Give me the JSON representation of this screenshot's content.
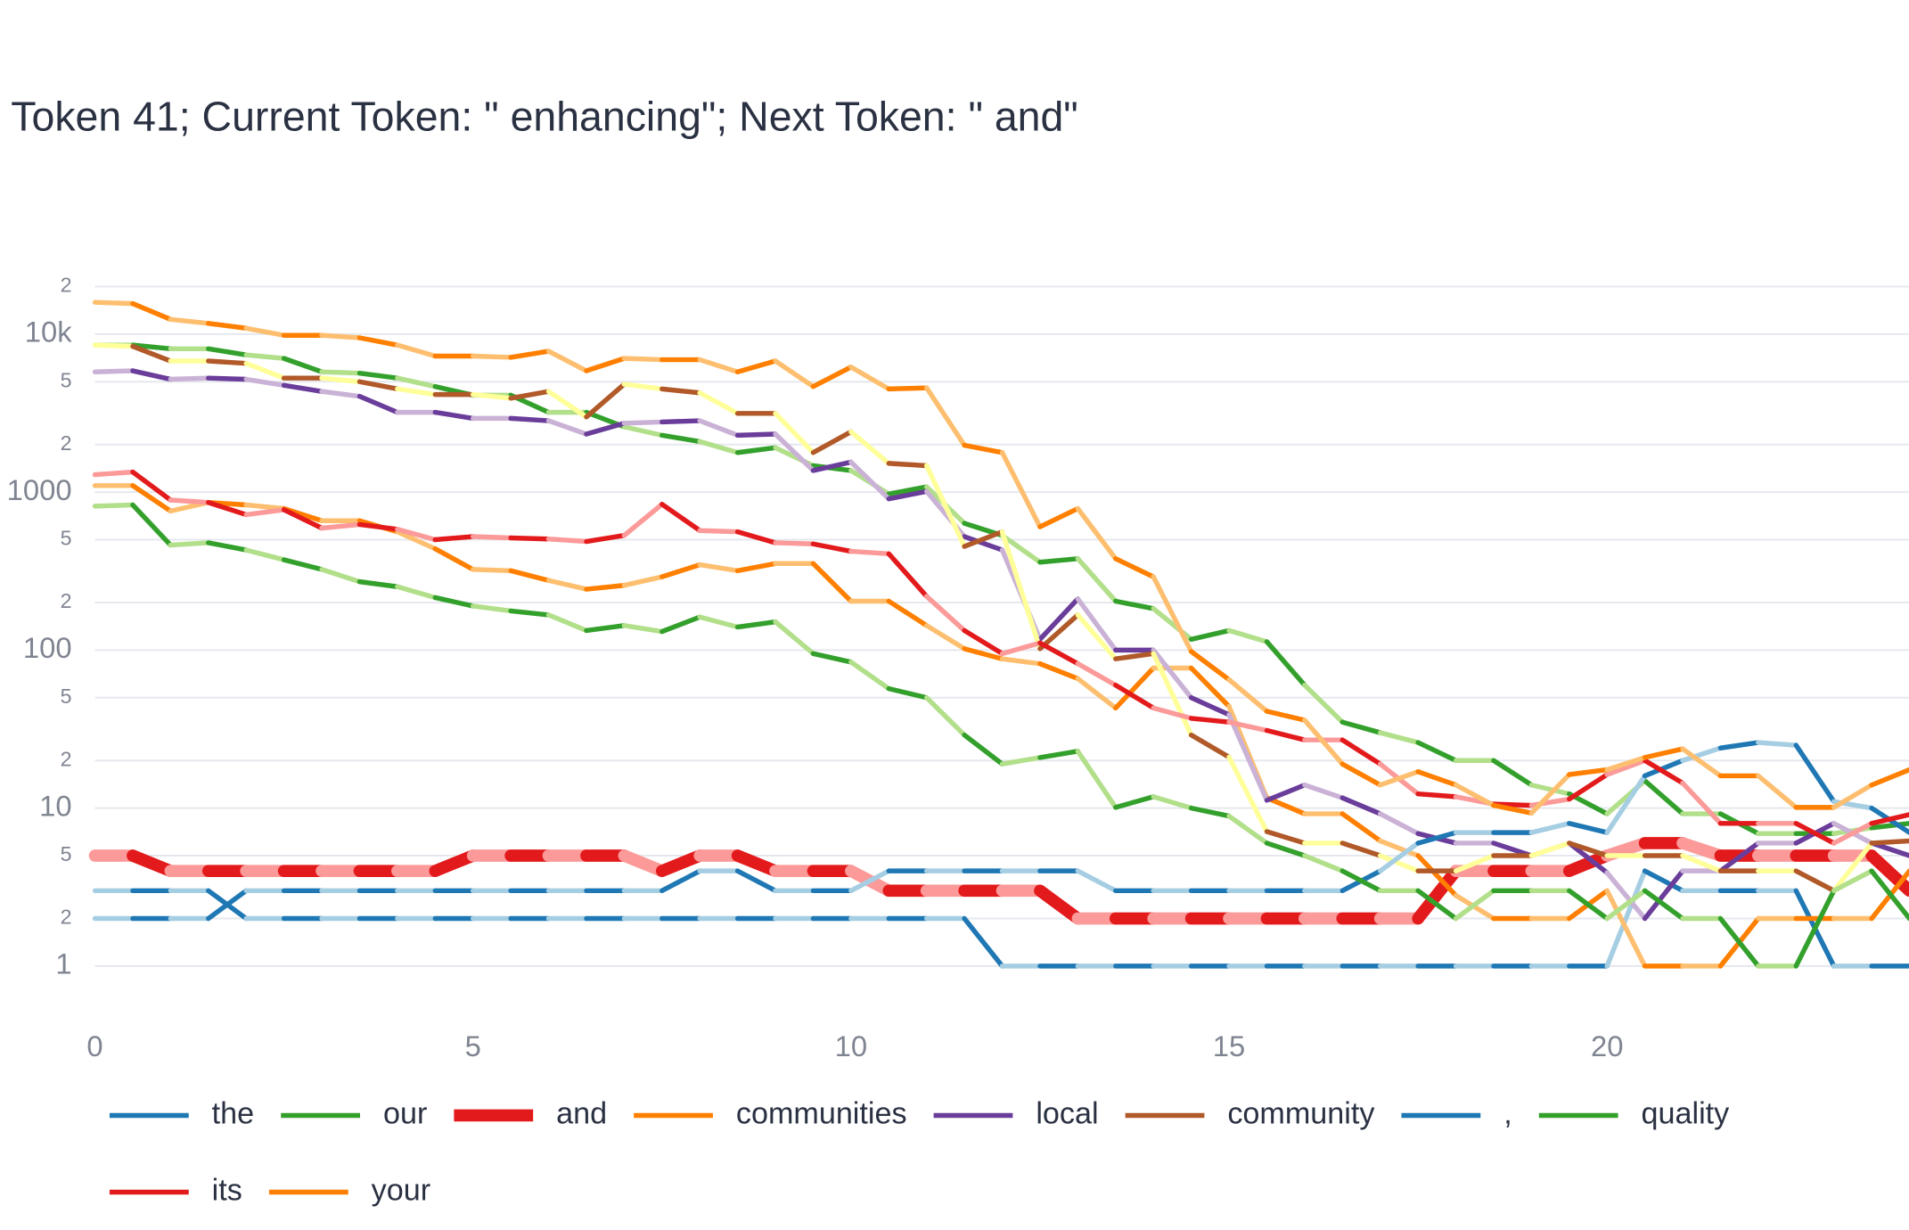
{
  "chart_data": {
    "type": "line",
    "title": "Token 41; Current Token: \" enhancing\"; Next Token: \" and\"",
    "yscale": "log",
    "grid": true,
    "legend": "bottom",
    "xlim": [
      0,
      24.05
    ],
    "xticks": [
      0,
      5,
      10,
      15,
      20
    ],
    "ylim": [
      0.57,
      24000
    ],
    "yticks": [
      1,
      2,
      5,
      10,
      {
        "value": 20,
        "label": "2"
      },
      {
        "value": 50,
        "label": "5"
      },
      100,
      {
        "value": 200,
        "label": "2"
      },
      {
        "value": 500,
        "label": "5"
      },
      1000,
      {
        "value": 2000,
        "label": "2"
      },
      {
        "value": 5000,
        "label": "5"
      },
      {
        "value": 10000,
        "label": "10k"
      },
      {
        "value": 20000,
        "label": "2"
      }
    ],
    "x": [
      0,
      0.5,
      1,
      1.5,
      2,
      2.5,
      3,
      3.5,
      4,
      4.5,
      5,
      5.5,
      6,
      6.5,
      7,
      7.5,
      8,
      8.5,
      9,
      9.5,
      10,
      10.5,
      11,
      11.5,
      12,
      12.5,
      13,
      13.5,
      14,
      14.5,
      15,
      15.5,
      16,
      16.5,
      17,
      17.5,
      18,
      18.5,
      19,
      19.5,
      20,
      20.5,
      21,
      21.5,
      22,
      22.5,
      23,
      23.5,
      24
    ],
    "series": [
      {
        "name": "the",
        "colors": [
          "#1f78b4",
          "#a6cee3"
        ],
        "values": [
          3,
          3,
          3,
          3,
          2,
          2,
          2,
          2,
          2,
          2,
          2,
          2,
          2,
          2,
          2,
          2,
          2,
          2,
          2,
          2,
          2,
          2,
          2,
          2,
          1,
          1,
          1,
          1,
          1,
          1,
          1,
          1,
          1,
          1,
          1,
          1,
          1,
          1,
          1,
          1,
          1,
          4,
          3,
          3,
          3,
          3,
          1,
          1,
          1
        ]
      },
      {
        "name": "our",
        "colors": [
          "#33a02c",
          "#b2df8a"
        ],
        "values": [
          8530,
          8530,
          8080,
          8080,
          7390,
          7020,
          5770,
          5660,
          5270,
          4660,
          4110,
          4110,
          3200,
          3200,
          2590,
          2290,
          2090,
          1780,
          1910,
          1470,
          1370,
          973,
          1080,
          635,
          532,
          360,
          379,
          204,
          183,
          117,
          133,
          113,
          60,
          35,
          30,
          26,
          20,
          20,
          14,
          12.3,
          9.2,
          14.9,
          9.2,
          9.2,
          6.9,
          6.9,
          6.9,
          7.5,
          8
        ]
      },
      {
        "name": "and",
        "colors": [
          "#e31a1c",
          "#fb9a99"
        ],
        "emphasis": true,
        "values": [
          5,
          5,
          4,
          4,
          4,
          4,
          4,
          4,
          4,
          4,
          5,
          5,
          5,
          5,
          5,
          4,
          5,
          5,
          4,
          4,
          4,
          3,
          3,
          3,
          3,
          3,
          2,
          2,
          2,
          2,
          2,
          2,
          2,
          2,
          2,
          2,
          4,
          4,
          4,
          4,
          5,
          6,
          6,
          5,
          5,
          5,
          5,
          5,
          3
        ]
      },
      {
        "name": "communities",
        "colors": [
          "#ff7f00",
          "#fdbf6f"
        ],
        "values": [
          1100,
          1100,
          759,
          860,
          830,
          787,
          659,
          659,
          561,
          438,
          324,
          318,
          276,
          243,
          257,
          291,
          347,
          318,
          353,
          353,
          204,
          204,
          143,
          102,
          88,
          82,
          66,
          43,
          77,
          77,
          44,
          11.6,
          9.2,
          9.2,
          6.2,
          5,
          2.8,
          2,
          2,
          2,
          3,
          1,
          1,
          1,
          2,
          2,
          2,
          2,
          4
        ]
      },
      {
        "name": "local",
        "colors": [
          "#6a3d9a",
          "#cab2d6"
        ],
        "values": [
          5770,
          5860,
          5180,
          5270,
          5180,
          4740,
          4340,
          4040,
          3200,
          3200,
          2930,
          2930,
          2830,
          2330,
          2730,
          2780,
          2830,
          2290,
          2330,
          1370,
          1550,
          907,
          1010,
          523,
          430,
          117,
          211,
          100,
          100,
          50,
          39,
          11.2,
          14,
          11.6,
          9.2,
          6.9,
          6,
          6,
          5,
          6,
          3.9,
          2,
          4,
          4,
          6,
          6,
          8,
          6,
          5
        ]
      },
      {
        "name": "community",
        "colors": [
          "#b15928",
          "#ffff99"
        ],
        "values": [
          8530,
          8370,
          6760,
          6760,
          6530,
          5270,
          5270,
          5000,
          4500,
          4150,
          4150,
          3930,
          4340,
          2990,
          4820,
          4500,
          4250,
          3150,
          3150,
          1780,
          2410,
          1520,
          1470,
          453,
          561,
          102,
          167,
          88,
          95,
          29,
          21,
          7.1,
          6,
          6,
          5,
          4,
          4,
          5,
          5,
          6,
          5,
          5,
          5,
          4,
          4,
          4,
          3,
          6,
          6.2
        ]
      },
      {
        "name": ",",
        "colors": [
          "#1f78b4",
          "#a6cee3"
        ],
        "values": [
          2,
          2,
          2,
          2,
          3,
          3,
          3,
          3,
          3,
          3,
          3,
          3,
          3,
          3,
          3,
          3,
          4,
          4,
          3,
          3,
          3,
          4,
          4,
          4,
          4,
          4,
          4,
          3,
          3,
          3,
          3,
          3,
          3,
          3,
          4,
          6,
          7,
          7,
          7,
          8,
          7,
          16,
          20,
          24,
          26,
          25,
          11,
          10,
          7
        ]
      },
      {
        "name": "quality",
        "colors": [
          "#33a02c",
          "#b2df8a"
        ],
        "values": [
          815,
          830,
          462,
          478,
          430,
          373,
          324,
          271,
          252,
          215,
          190,
          177,
          167,
          133,
          143,
          131,
          162,
          140,
          151,
          95,
          84,
          57,
          50,
          29,
          19,
          20.9,
          22.9,
          10.1,
          11.8,
          10,
          8.9,
          6,
          5,
          4,
          3,
          3,
          2,
          3,
          3,
          3,
          2,
          3,
          2,
          2,
          1,
          1,
          3,
          4,
          2
        ]
      },
      {
        "name": "its",
        "colors": [
          "#e31a1c",
          "#fb9a99"
        ],
        "values": [
          1290,
          1340,
          891,
          860,
          720,
          773,
          592,
          624,
          582,
          500,
          523,
          513,
          505,
          487,
          532,
          838,
          571,
          561,
          478,
          470,
          422,
          407,
          219,
          133,
          95,
          111,
          82,
          60,
          43,
          37,
          35,
          31,
          27,
          27,
          19,
          12.3,
          11.8,
          10.6,
          10.4,
          11.4,
          16.3,
          20,
          14.4,
          8,
          8,
          8,
          6,
          8,
          9.1
        ]
      },
      {
        "name": "your",
        "colors": [
          "#ff7f00",
          "#fdbf6f"
        ],
        "values": [
          15900,
          15600,
          12400,
          11700,
          10900,
          9830,
          9830,
          9480,
          8530,
          7260,
          7260,
          7130,
          7800,
          5860,
          7020,
          6890,
          6890,
          5770,
          6760,
          4660,
          6190,
          4500,
          4570,
          1980,
          1780,
          603,
          787,
          379,
          291,
          98,
          65,
          41,
          36,
          19,
          14,
          17,
          14,
          10.4,
          9.3,
          16.3,
          17.5,
          20.9,
          23.7,
          16,
          16,
          10.1,
          10.1,
          14,
          17.5
        ]
      }
    ]
  }
}
